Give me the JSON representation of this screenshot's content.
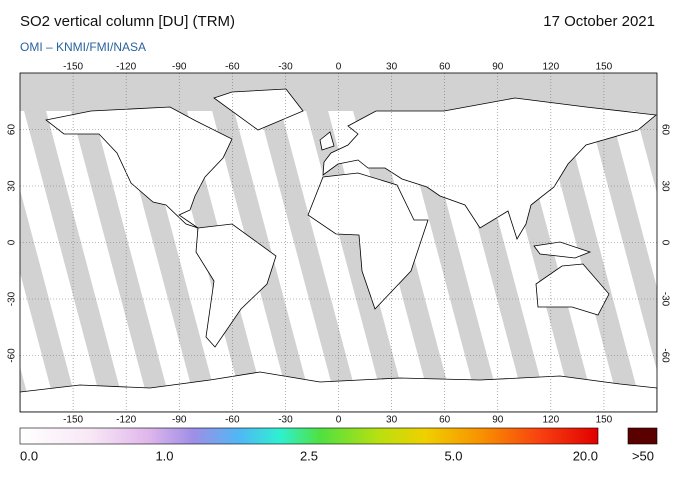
{
  "header": {
    "title": "SO2 vertical column [DU] (TRM)",
    "date": "17 October 2021",
    "credit": "OMI  –  KNMI/FMI/NASA"
  },
  "map": {
    "xlim": [
      -180,
      180
    ],
    "ylim": [
      -90,
      90
    ],
    "lon_ticks": [
      -150,
      -120,
      -90,
      -60,
      -30,
      0,
      30,
      60,
      90,
      120,
      150
    ],
    "lat_ticks": [
      60,
      30,
      0,
      -30,
      -60
    ]
  },
  "colorbar": {
    "labels": [
      "0.0",
      "1.0",
      "2.5",
      "5.0",
      "20.0"
    ],
    "overflow_label": ">50"
  }
}
